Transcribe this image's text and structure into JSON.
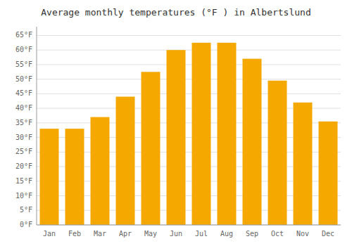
{
  "chart_data": {
    "type": "bar",
    "title": "Average monthly temperatures (°F ) in Albertslund",
    "categories": [
      "Jan",
      "Feb",
      "Mar",
      "Apr",
      "May",
      "Jun",
      "Jul",
      "Aug",
      "Sep",
      "Oct",
      "Nov",
      "Dec"
    ],
    "values": [
      33,
      33,
      37,
      44,
      52.5,
      60,
      62.5,
      62.5,
      57,
      49.5,
      42,
      35.5
    ],
    "color": "#F5A800",
    "ylim": [
      0,
      68
    ],
    "yticks": [
      {
        "value": 0,
        "label": "0°F"
      },
      {
        "value": 5,
        "label": "5°F"
      },
      {
        "value": 10,
        "label": "10°F"
      },
      {
        "value": 15,
        "label": "15°F"
      },
      {
        "value": 20,
        "label": "20°F"
      },
      {
        "value": 25,
        "label": "25°F"
      },
      {
        "value": 30,
        "label": "30°F"
      },
      {
        "value": 35,
        "label": "35°F"
      },
      {
        "value": 40,
        "label": "40°F"
      },
      {
        "value": 45,
        "label": "45°F"
      },
      {
        "value": 50,
        "label": "50°F"
      },
      {
        "value": 55,
        "label": "55°F"
      },
      {
        "value": 60,
        "label": "60°F"
      },
      {
        "value": 65,
        "label": "65°F"
      }
    ],
    "grid": true
  }
}
